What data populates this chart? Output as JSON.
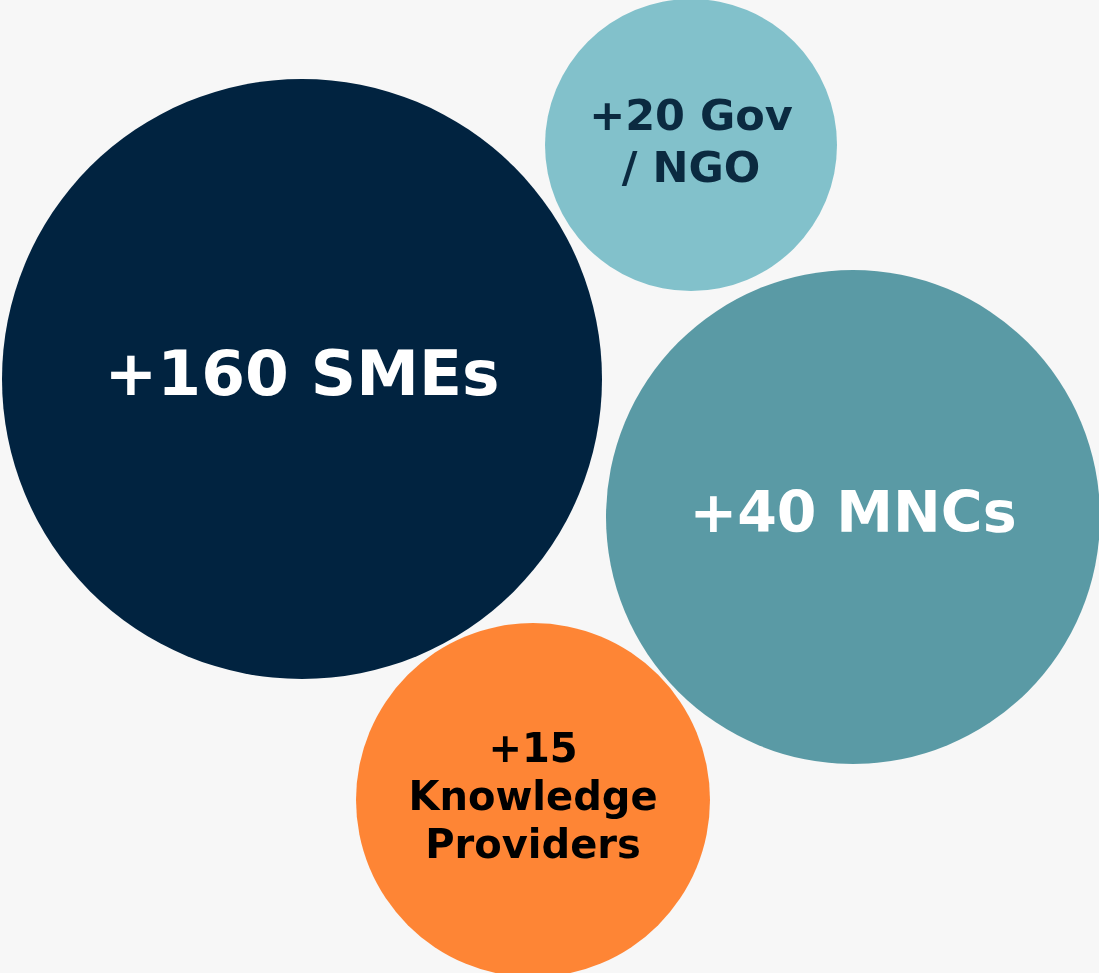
{
  "chart_data": {
    "type": "other",
    "categories": [
      "SMEs",
      "Gov / NGO",
      "MNCs",
      "Knowledge Providers"
    ],
    "values": [
      160,
      20,
      40,
      15
    ],
    "value_labels": [
      "+160",
      "+20",
      "+40",
      "+15"
    ],
    "colors": [
      "#012340",
      "#82c1cb",
      "#5a9aa5",
      "#fe8535"
    ]
  }
}
